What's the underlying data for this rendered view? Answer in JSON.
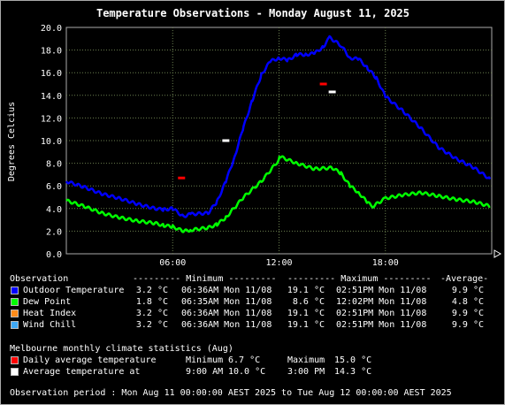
{
  "title": "Temperature Observations - Monday August 11, 2025",
  "chart_data": {
    "type": "line",
    "title": "Temperature Observations - Monday August 11, 2025",
    "ylabel": "Degrees Celcius",
    "xlabel": "",
    "ylim": [
      0,
      20
    ],
    "xlim": [
      0,
      24
    ],
    "y_ticks": [
      "0.0",
      "2.0",
      "4.0",
      "6.0",
      "8.0",
      "10.0",
      "12.0",
      "14.0",
      "16.0",
      "18.0",
      "20.0"
    ],
    "x_ticks": [
      {
        "hour": 6,
        "label": "06:00"
      },
      {
        "hour": 12,
        "label": "12:00"
      },
      {
        "hour": 18,
        "label": "18:00"
      }
    ],
    "grid": true,
    "series": [
      {
        "name": "Outdoor Temperature",
        "color": "#0000ff",
        "x": [
          0,
          1,
          2,
          3,
          4,
          5,
          5.5,
          6,
          6.6,
          7,
          8,
          8.5,
          9,
          9.5,
          10,
          10.5,
          11,
          11.5,
          12,
          12.5,
          13,
          13.5,
          14,
          14.5,
          14.85,
          15.5,
          16,
          16.5,
          17,
          17.5,
          18,
          19,
          20,
          21,
          22,
          23,
          23.9
        ],
        "y": [
          6.4,
          5.9,
          5.3,
          4.9,
          4.4,
          4.0,
          3.9,
          4.0,
          3.3,
          3.5,
          3.6,
          4.6,
          6.4,
          8.6,
          11.2,
          13.6,
          15.8,
          17.0,
          17.3,
          17.1,
          17.6,
          17.6,
          17.7,
          18.3,
          19.1,
          18.4,
          17.3,
          17.2,
          16.4,
          15.5,
          13.9,
          12.6,
          11.1,
          9.4,
          8.4,
          7.6,
          6.6
        ]
      },
      {
        "name": "Dew Point",
        "color": "#00ff00",
        "x": [
          0,
          1,
          2,
          3,
          4,
          5,
          5.5,
          6,
          6.6,
          7,
          8,
          8.5,
          9,
          10,
          11,
          12,
          12.03,
          13,
          14,
          15,
          15.5,
          16,
          16.5,
          17,
          17.3,
          18,
          19,
          20,
          21,
          22,
          23,
          23.9
        ],
        "y": [
          4.7,
          4.2,
          3.6,
          3.2,
          2.9,
          2.7,
          2.5,
          2.4,
          2.0,
          2.1,
          2.3,
          2.6,
          3.2,
          5.0,
          6.4,
          8.3,
          8.6,
          8.0,
          7.5,
          7.6,
          7.1,
          6.0,
          5.4,
          4.5,
          4.2,
          4.9,
          5.2,
          5.4,
          5.1,
          4.8,
          4.6,
          4.2
        ]
      }
    ],
    "markers": [
      {
        "name": "Daily average temperature",
        "color": "#ff0000",
        "points": [
          {
            "hour": 6.5,
            "value": 6.7
          },
          {
            "hour": 14.5,
            "value": 15.0
          }
        ]
      },
      {
        "name": "Average temperature at",
        "color": "#ffffff",
        "points": [
          {
            "hour": 9,
            "value": 10.0
          },
          {
            "hour": 15,
            "value": 14.3
          }
        ]
      }
    ]
  },
  "stats": {
    "headers": {
      "observation": "Observation",
      "minimum": "--------- Minimum ---------",
      "maximum": "--------- Maximum ---------",
      "average": "-Average-"
    },
    "rows": [
      {
        "label": "Outdoor Temperature",
        "color": "#0000ff",
        "min": "3.2 °C",
        "min_time": "06:36AM Mon 11/08",
        "max": "19.1 °C",
        "max_time": "02:51PM Mon 11/08",
        "avg": "9.9 °C"
      },
      {
        "label": "Dew Point",
        "color": "#00ff00",
        "min": "1.8 °C",
        "min_time": "06:35AM Mon 11/08",
        "max": "8.6 °C",
        "max_time": "12:02PM Mon 11/08",
        "avg": "4.8 °C"
      },
      {
        "label": "Heat Index",
        "color": "#ff8c1a",
        "min": "3.2 °C",
        "min_time": "06:36AM Mon 11/08",
        "max": "19.1 °C",
        "max_time": "02:51PM Mon 11/08",
        "avg": "9.9 °C"
      },
      {
        "label": "Wind Chill",
        "color": "#3fa9f5",
        "min": "3.2 °C",
        "min_time": "06:36AM Mon 11/08",
        "max": "19.1 °C",
        "max_time": "02:51PM Mon 11/08",
        "avg": "9.9 °C"
      }
    ]
  },
  "climate": {
    "heading": "Melbourne monthly climate statistics (Aug)",
    "rows": [
      {
        "label": "Daily average temperature",
        "color": "#ff0000",
        "min_label": "Minimum",
        "min_value": "6.7 °C",
        "max_label": "Maximum",
        "max_value": "15.0 °C"
      },
      {
        "label": "Average temperature at",
        "color": "#ffffff",
        "min_label": "9:00 AM",
        "min_value": "10.0 °C",
        "max_label": "3:00 PM",
        "max_value": "14.3 °C"
      }
    ]
  },
  "footer": "Observation period : Mon Aug 11 00:00:00 AEST 2025 to Tue Aug 12 00:00:00 AEST 2025"
}
